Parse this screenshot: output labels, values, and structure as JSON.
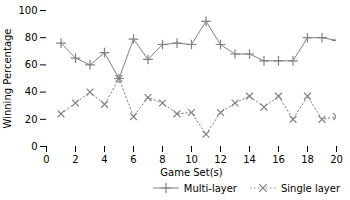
{
  "chart_data": {
    "type": "line",
    "xlabel": "Game Set(s)",
    "ylabel": "Winning Percentage",
    "x": [
      1,
      2,
      3,
      4,
      5,
      6,
      7,
      8,
      9,
      10,
      11,
      12,
      13,
      14,
      15,
      16,
      17,
      18,
      19,
      20
    ],
    "series": [
      {
        "name": "Multi-layer",
        "color": "#808080",
        "line_style": "solid",
        "marker": "plus",
        "values": [
          76,
          65,
          60,
          69,
          50,
          79,
          64,
          75,
          76,
          75,
          92,
          75,
          68,
          68,
          63,
          63,
          63,
          80,
          80,
          78
        ]
      },
      {
        "name": "Single layer",
        "color": "#808080",
        "line_style": "dotted",
        "marker": "times",
        "values": [
          24,
          32,
          40,
          31,
          50,
          22,
          36,
          32,
          24,
          25,
          9,
          25,
          32,
          37,
          29,
          37,
          20,
          37,
          20,
          22
        ]
      }
    ],
    "xlim": [
      0,
      20
    ],
    "ylim": [
      0,
      100
    ],
    "xticks": [
      0,
      2,
      4,
      6,
      8,
      10,
      12,
      14,
      16,
      18,
      20
    ],
    "yticks": [
      0,
      20,
      40,
      60,
      80,
      100
    ],
    "grid": false,
    "legend": "lower right"
  }
}
